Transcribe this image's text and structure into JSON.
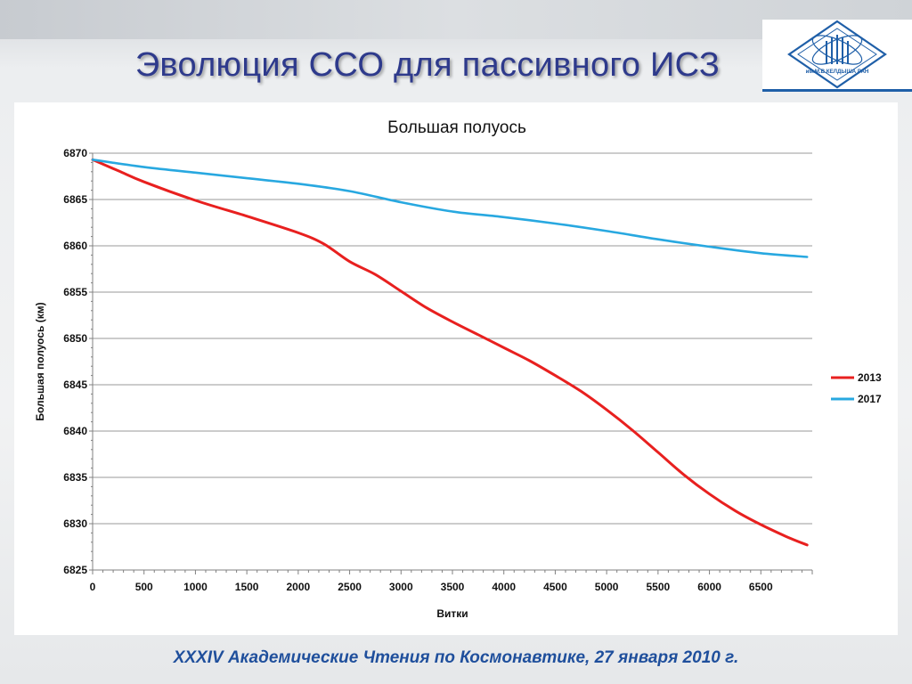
{
  "slide": {
    "title": "Эволюция ССО для пассивного ИСЗ",
    "footer": "XXXIV  Академические Чтения по Космонавтике,  27 января 2010 г.",
    "logo_text": "им.М.В.КЕЛДЫША РАН"
  },
  "colors": {
    "title": "#2e3a8c",
    "footer": "#1f4f9c",
    "series_2013": "#e8201f",
    "series_2017": "#28a8e0"
  },
  "chart_data": {
    "type": "line",
    "title": "Большая полуось",
    "xlabel": "Витки",
    "ylabel": "Большая полуось  (км)",
    "xlim": [
      0,
      7000
    ],
    "ylim": [
      6825,
      6870
    ],
    "xticks": [
      0,
      500,
      1000,
      1500,
      2000,
      2500,
      3000,
      3500,
      4000,
      4500,
      5000,
      5500,
      6000,
      6500
    ],
    "yticks": [
      6825,
      6830,
      6835,
      6840,
      6845,
      6850,
      6855,
      6860,
      6865,
      6870
    ],
    "grid": true,
    "legend_position": "right",
    "series": [
      {
        "name": "2013",
        "color": "#e8201f",
        "x": [
          0,
          250,
          500,
          1000,
          1500,
          2000,
          2250,
          2500,
          2750,
          3000,
          3250,
          3500,
          3750,
          4000,
          4250,
          4500,
          4750,
          5000,
          5250,
          5500,
          5750,
          6000,
          6250,
          6500,
          6750,
          6950
        ],
        "y": [
          6869.3,
          6868.1,
          6866.9,
          6864.9,
          6863.2,
          6861.4,
          6860.2,
          6858.3,
          6856.9,
          6855.1,
          6853.3,
          6851.8,
          6850.4,
          6849.0,
          6847.6,
          6846.0,
          6844.3,
          6842.3,
          6840.1,
          6837.7,
          6835.3,
          6833.2,
          6831.4,
          6829.9,
          6828.6,
          6827.7
        ]
      },
      {
        "name": "2017",
        "color": "#28a8e0",
        "x": [
          0,
          500,
          1000,
          1500,
          2000,
          2500,
          3000,
          3500,
          4000,
          4500,
          5000,
          5500,
          6000,
          6500,
          6950
        ],
        "y": [
          6869.3,
          6868.5,
          6867.9,
          6867.3,
          6866.7,
          6865.9,
          6864.7,
          6863.7,
          6863.1,
          6862.4,
          6861.6,
          6860.7,
          6859.9,
          6859.2,
          6858.8
        ]
      }
    ]
  }
}
